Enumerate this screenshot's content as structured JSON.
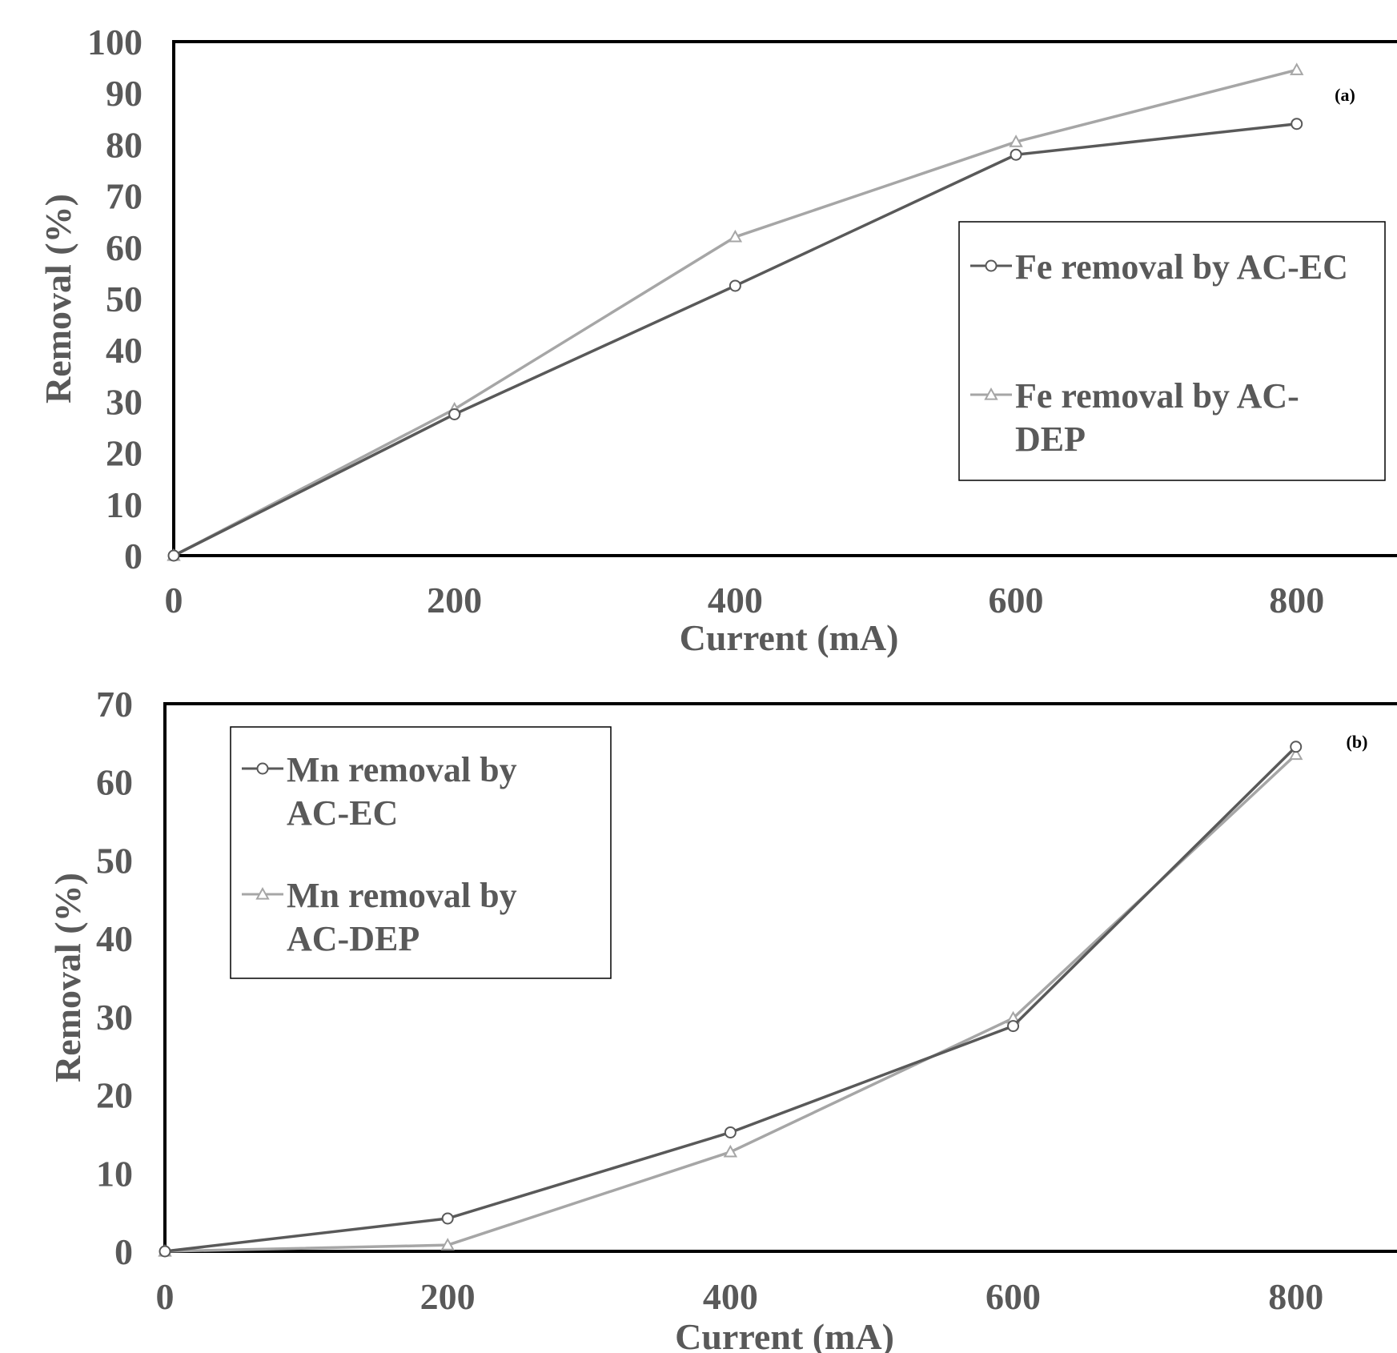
{
  "chart_data": [
    {
      "type": "line",
      "panel_label": "(a)",
      "xlabel": "Current (mA)",
      "ylabel": "Removal (%)",
      "xlim": [
        0,
        880
      ],
      "ylim": [
        0,
        100
      ],
      "x_ticks": [
        0,
        200,
        400,
        600,
        800
      ],
      "y_ticks": [
        0,
        10,
        20,
        30,
        40,
        50,
        60,
        70,
        80,
        90,
        100
      ],
      "x": [
        0,
        200,
        400,
        600,
        800
      ],
      "legend_position": "right",
      "series": [
        {
          "name": [
            "Fe removal by AC-EC"
          ],
          "values": [
            0,
            27.5,
            52.5,
            78,
            84
          ],
          "color": "#595959",
          "marker": "circle"
        },
        {
          "name": [
            "Fe removal by AC-",
            "DEP"
          ],
          "values": [
            0,
            28.5,
            62,
            80.5,
            94.5
          ],
          "color": "#a6a6a6",
          "marker": "triangle"
        }
      ]
    },
    {
      "type": "line",
      "panel_label": "(b)",
      "xlabel": "Current (mA)",
      "ylabel": "Removal (%)",
      "xlim": [
        0,
        880
      ],
      "ylim": [
        0,
        70
      ],
      "x_ticks": [
        0,
        200,
        400,
        600,
        800
      ],
      "y_ticks": [
        0,
        10,
        20,
        30,
        40,
        50,
        60,
        70
      ],
      "x": [
        0,
        200,
        400,
        600,
        800
      ],
      "legend_position": "top-left",
      "series": [
        {
          "name": [
            "Mn removal by",
            "AC-EC"
          ],
          "values": [
            0,
            4.2,
            15.2,
            28.8,
            64.5
          ],
          "color": "#595959",
          "marker": "circle"
        },
        {
          "name": [
            "Mn removal by",
            "AC-DEP"
          ],
          "values": [
            0,
            0.8,
            12.7,
            29.8,
            63.5
          ],
          "color": "#a6a6a6",
          "marker": "triangle"
        }
      ]
    }
  ]
}
